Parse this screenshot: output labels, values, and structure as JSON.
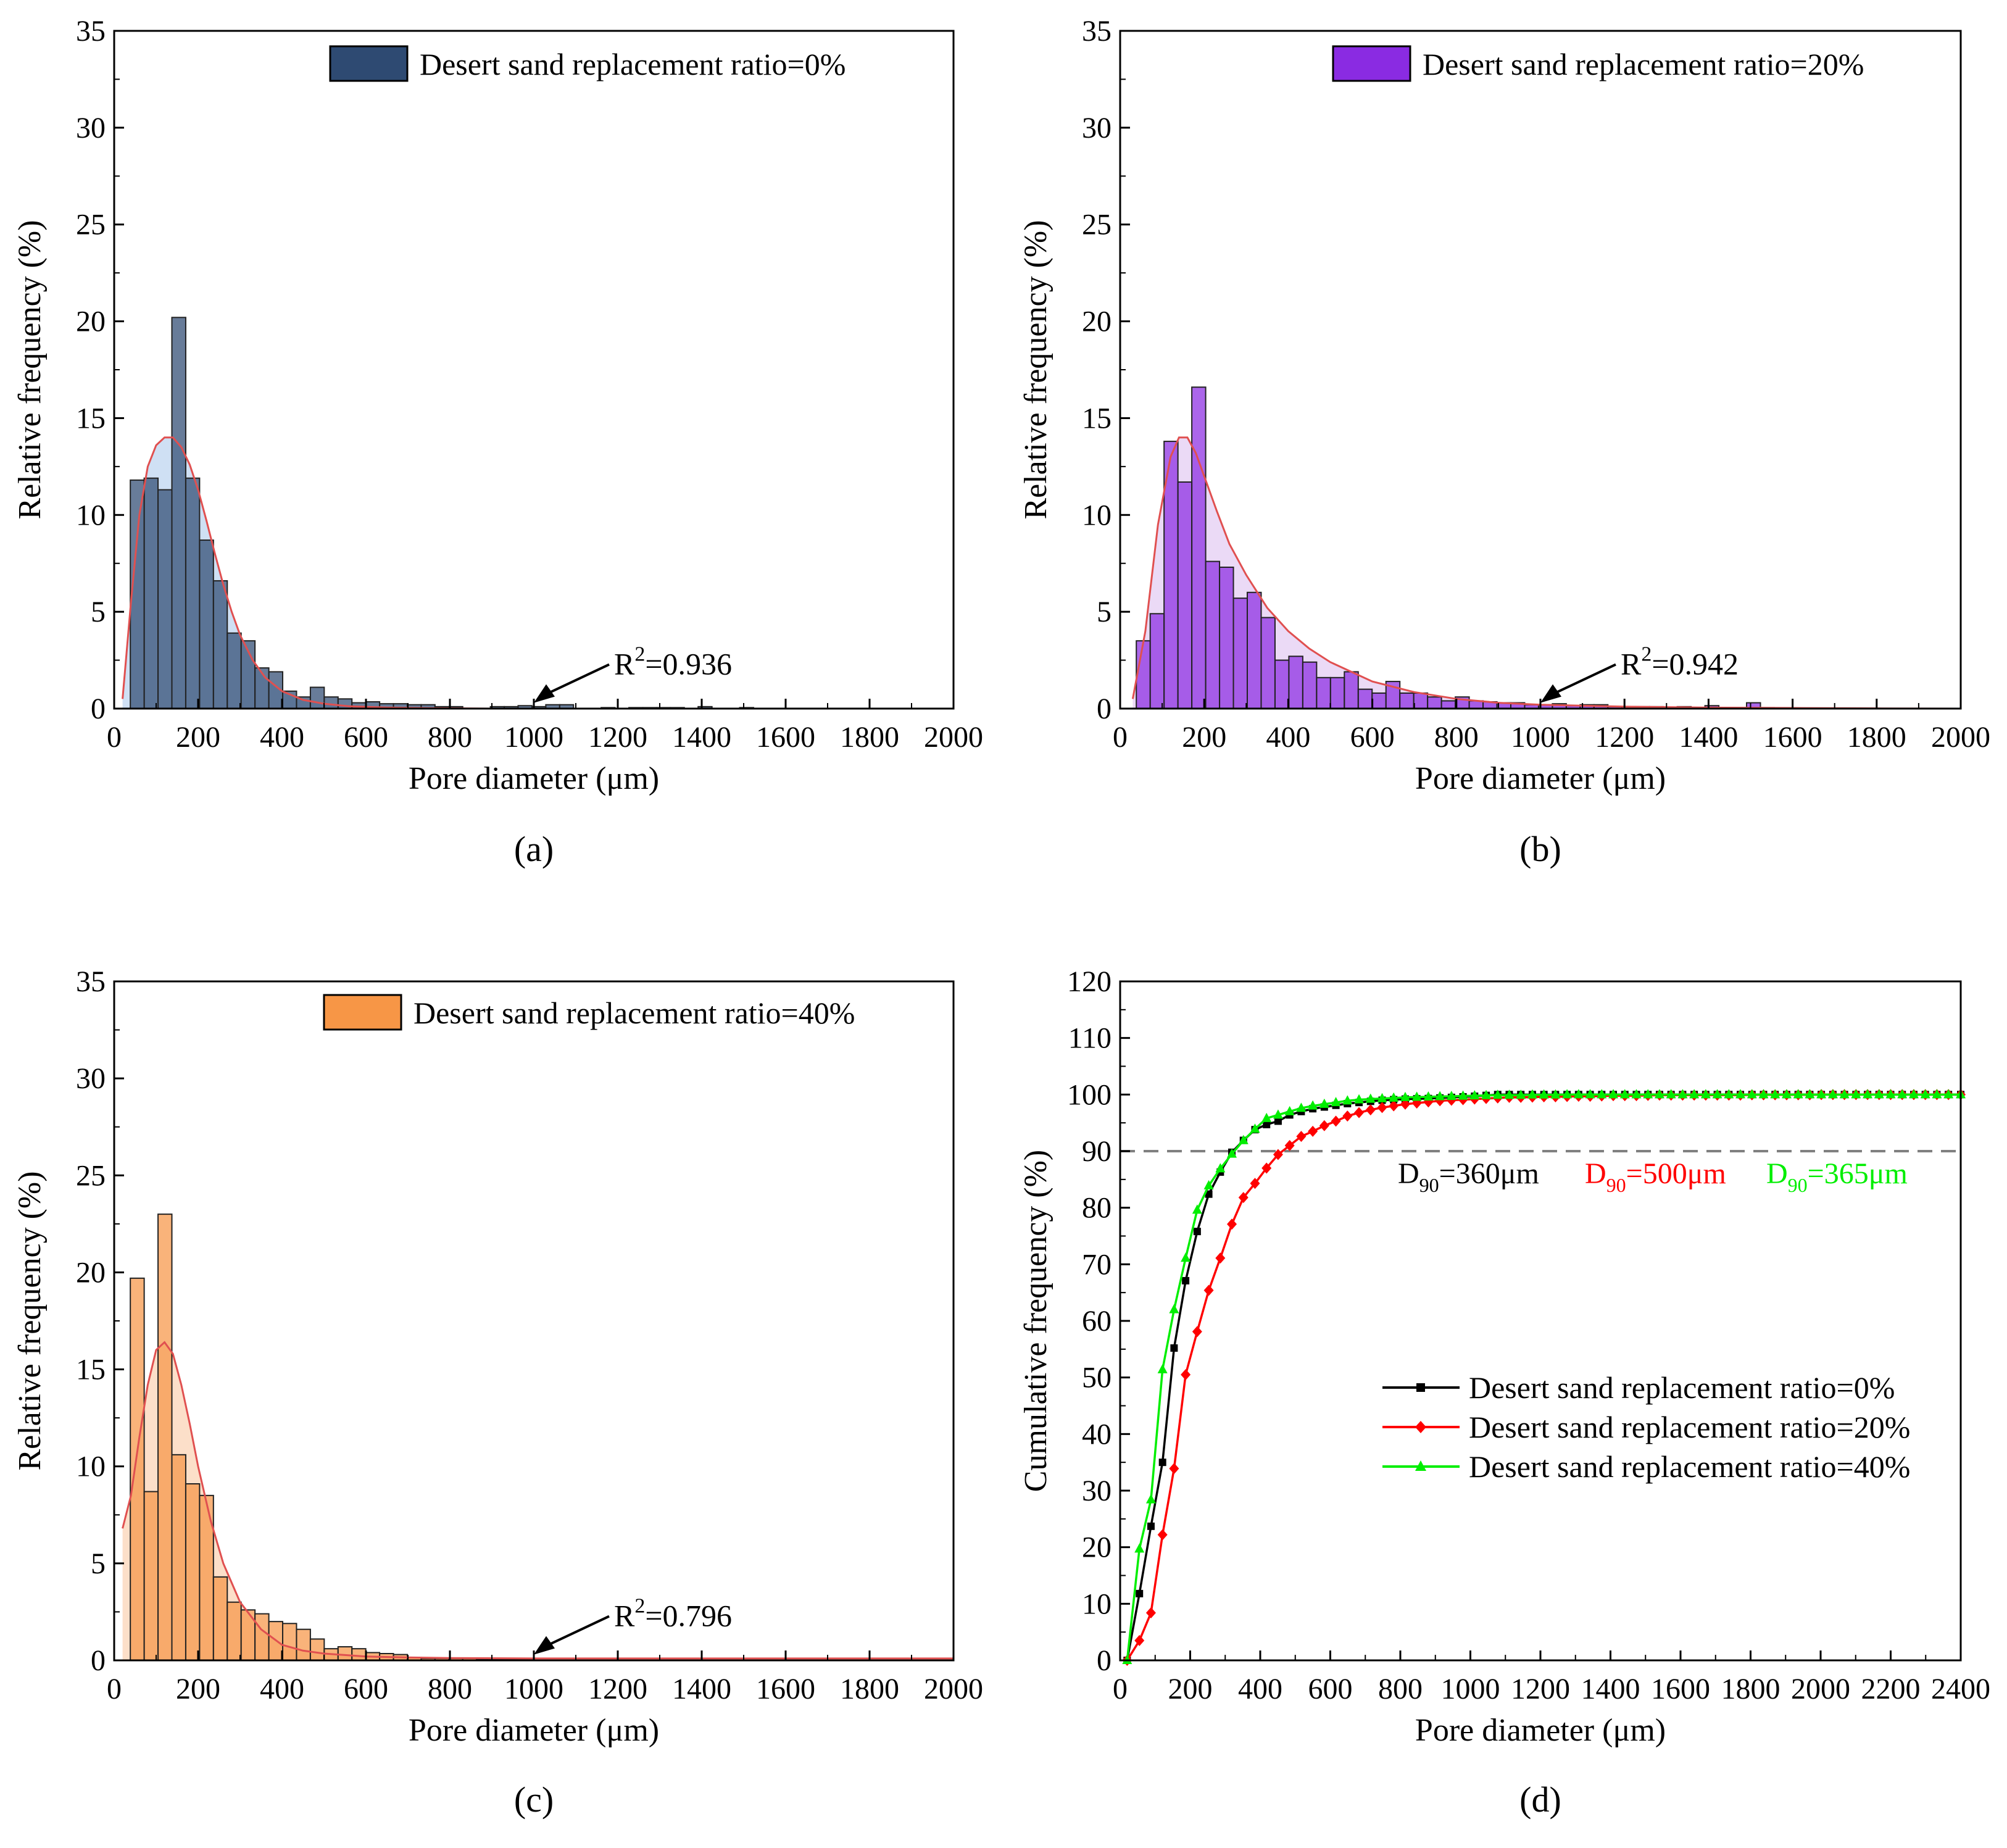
{
  "colors": {
    "a_bar": "#2e4a72",
    "a_fill": "#c7daf2",
    "b_bar": "#8a2be2",
    "b_fill": "#e8d3f4",
    "c_bar": "#f79646",
    "c_fill": "#fbd9c0",
    "fit_line": "#e05050",
    "series0": "#000000",
    "series20": "#ff0000",
    "series40": "#00ee00",
    "dashed": "#808080"
  },
  "chart_data": [
    {
      "type": "bar",
      "panel_label": "(a)",
      "legend": "Desert sand replacement ratio=0%",
      "xlabel": "Pore diameter (μm)",
      "ylabel": "Relative frequency (%)",
      "xlim": [
        0,
        2000
      ],
      "ylim": [
        0,
        35
      ],
      "xticks": [
        "0",
        "200",
        "400",
        "600",
        "800",
        "1000",
        "1200",
        "1400",
        "1600",
        "1800",
        "2000"
      ],
      "yticks": [
        "0",
        "5",
        "10",
        "15",
        "20",
        "25",
        "30",
        "35"
      ],
      "bin_width": 33,
      "x": [
        55,
        88,
        121,
        154,
        187,
        220,
        253,
        286,
        319,
        352,
        385,
        418,
        451,
        484,
        517,
        550,
        583,
        616,
        649,
        682,
        715,
        748,
        781,
        814,
        913,
        946,
        979,
        1012,
        1045,
        1078,
        1177,
        1243,
        1276,
        1309,
        1342,
        1408,
        1507
      ],
      "values": [
        11.8,
        11.9,
        11.3,
        20.2,
        11.9,
        8.7,
        6.6,
        3.9,
        3.5,
        2.1,
        1.9,
        0.9,
        0.6,
        1.1,
        0.6,
        0.5,
        0.3,
        0.35,
        0.25,
        0.25,
        0.2,
        0.2,
        0.1,
        0.1,
        0.1,
        0.1,
        0.15,
        0.1,
        0.2,
        0.2,
        0.05,
        0.05,
        0.05,
        0.05,
        0.05,
        0.1,
        0.05
      ],
      "fit_curve": {
        "x": [
          20,
          40,
          60,
          80,
          100,
          120,
          140,
          160,
          180,
          200,
          220,
          240,
          260,
          280,
          300,
          330,
          360,
          400,
          450,
          500,
          560,
          650,
          750,
          900,
          1100,
          1400,
          1700,
          2000
        ],
        "y": [
          0.5,
          5.5,
          10.0,
          12.5,
          13.6,
          14.0,
          14.0,
          13.5,
          12.6,
          11.3,
          9.7,
          8.0,
          6.4,
          5.0,
          3.8,
          2.5,
          1.6,
          0.9,
          0.45,
          0.25,
          0.12,
          0.05,
          0.02,
          0.0,
          0.0,
          0.0,
          0.0,
          0.0
        ]
      },
      "annotation": {
        "prefix": "R",
        "sup": "2",
        "suffix": "=0.936",
        "arrow_x": 1000,
        "arrow_y": 0.3
      }
    },
    {
      "type": "bar",
      "panel_label": "(b)",
      "legend": "Desert sand replacement ratio=20%",
      "xlabel": "Pore diameter (μm)",
      "ylabel": "Relative frequency (%)",
      "xlim": [
        0,
        2000
      ],
      "ylim": [
        0,
        35
      ],
      "xticks": [
        "0",
        "200",
        "400",
        "600",
        "800",
        "1000",
        "1200",
        "1400",
        "1600",
        "1800",
        "2000"
      ],
      "yticks": [
        "0",
        "5",
        "10",
        "15",
        "20",
        "25",
        "30",
        "35"
      ],
      "bin_width": 33,
      "x": [
        55,
        88,
        121,
        154,
        187,
        220,
        253,
        286,
        319,
        352,
        385,
        418,
        451,
        484,
        517,
        550,
        583,
        616,
        649,
        682,
        715,
        748,
        781,
        814,
        847,
        880,
        913,
        946,
        979,
        1012,
        1045,
        1078,
        1111,
        1144,
        1177,
        1210,
        1243,
        1276,
        1309,
        1342,
        1375,
        1408,
        1441,
        1474,
        1507,
        1540
      ],
      "values": [
        3.5,
        4.9,
        13.8,
        11.7,
        16.6,
        7.6,
        7.3,
        5.7,
        6.0,
        4.7,
        2.5,
        2.7,
        2.4,
        1.6,
        1.6,
        1.9,
        1.0,
        0.8,
        1.4,
        0.8,
        0.8,
        0.6,
        0.4,
        0.6,
        0.4,
        0.35,
        0.3,
        0.3,
        0.2,
        0.2,
        0.25,
        0.15,
        0.2,
        0.2,
        0.1,
        0.1,
        0.1,
        0.1,
        0.05,
        0.1,
        0.05,
        0.15,
        0.05,
        0.05,
        0.3,
        0.05
      ],
      "fit_curve": {
        "x": [
          30,
          60,
          90,
          120,
          140,
          160,
          180,
          200,
          230,
          260,
          300,
          350,
          400,
          450,
          500,
          600,
          700,
          800,
          900,
          1000,
          1200,
          1400,
          1600,
          1800,
          2000
        ],
        "y": [
          0.5,
          4.0,
          9.5,
          13.0,
          14.0,
          14.0,
          13.2,
          12.0,
          10.2,
          8.5,
          6.9,
          5.2,
          4.0,
          3.1,
          2.4,
          1.4,
          0.85,
          0.5,
          0.3,
          0.2,
          0.1,
          0.05,
          0.03,
          0.01,
          0.0
        ]
      },
      "annotation": {
        "prefix": "R",
        "sup": "2",
        "suffix": "=0.942",
        "arrow_x": 1000,
        "arrow_y": 0.3
      }
    },
    {
      "type": "bar",
      "panel_label": "(c)",
      "legend": "Desert sand replacement ratio=40%",
      "xlabel": "Pore diameter (μm)",
      "ylabel": "Relative frequency (%)",
      "xlim": [
        0,
        2000
      ],
      "ylim": [
        0,
        35
      ],
      "xticks": [
        "0",
        "200",
        "400",
        "600",
        "800",
        "1000",
        "1200",
        "1400",
        "1600",
        "1800",
        "2000"
      ],
      "yticks": [
        "0",
        "5",
        "10",
        "15",
        "20",
        "25",
        "30",
        "35"
      ],
      "bin_width": 33,
      "x": [
        55,
        88,
        121,
        154,
        187,
        220,
        253,
        286,
        319,
        352,
        385,
        418,
        451,
        484,
        517,
        550,
        583,
        616,
        649,
        682,
        715,
        748,
        781,
        814,
        847,
        880,
        913,
        946,
        979
      ],
      "values": [
        19.7,
        8.7,
        23.0,
        10.6,
        9.1,
        8.5,
        4.3,
        3.0,
        2.6,
        2.4,
        2.0,
        1.9,
        1.6,
        1.1,
        0.6,
        0.7,
        0.6,
        0.4,
        0.35,
        0.3,
        0.15,
        0.1,
        0.1,
        0.1,
        0.1,
        0.05,
        0.05,
        0.05,
        0.05
      ],
      "fit_curve": {
        "x": [
          20,
          40,
          60,
          80,
          100,
          120,
          140,
          160,
          180,
          200,
          230,
          260,
          300,
          350,
          400,
          450,
          500,
          600,
          700,
          800,
          1000,
          1200,
          1500,
          2000
        ],
        "y": [
          6.8,
          8.5,
          11.5,
          14.2,
          16.0,
          16.4,
          15.8,
          14.2,
          12.2,
          10.0,
          7.2,
          5.0,
          3.0,
          1.6,
          0.8,
          0.5,
          0.35,
          0.2,
          0.15,
          0.12,
          0.1,
          0.1,
          0.1,
          0.1
        ]
      },
      "annotation": {
        "prefix": "R",
        "sup": "2",
        "suffix": "=0.796",
        "arrow_x": 1000,
        "arrow_y": 0.3
      }
    },
    {
      "type": "line",
      "panel_label": "(d)",
      "xlabel": "Pore diameter (μm)",
      "ylabel": "Cumulative frequency (%)",
      "xlim": [
        0,
        2400
      ],
      "ylim": [
        0,
        120
      ],
      "xticks": [
        "0",
        "200",
        "400",
        "600",
        "800",
        "1000",
        "1200",
        "1400",
        "1600",
        "1800",
        "2000",
        "2200",
        "2400"
      ],
      "yticks": [
        "0",
        "10",
        "20",
        "30",
        "40",
        "50",
        "60",
        "70",
        "80",
        "90",
        "100",
        "110",
        "120"
      ],
      "reference_line": 90,
      "d90_labels": [
        {
          "prefix": "D",
          "sub": "90",
          "suffix": "=360μm",
          "color": "#000000"
        },
        {
          "prefix": "D",
          "sub": "90",
          "suffix": "=500μm",
          "color": "#ff0000"
        },
        {
          "prefix": "D",
          "sub": "90",
          "suffix": "=365μm",
          "color": "#00ee00"
        }
      ],
      "series": [
        {
          "name": "Desert sand replacement ratio=0%",
          "marker": "square",
          "x": [
            20,
            55,
            88,
            121,
            154,
            187,
            220,
            253,
            286,
            319,
            352,
            385,
            418,
            451,
            484,
            517,
            550,
            583,
            616,
            649,
            682,
            715,
            748,
            781,
            814,
            847,
            880,
            913,
            946,
            979,
            1012,
            1045,
            1078,
            1111,
            1144,
            1177,
            1210,
            1243,
            1276,
            1309,
            1342,
            1375,
            1408,
            1441,
            1474,
            1507,
            1540,
            1573,
            1606,
            1639,
            1672,
            1705,
            1738,
            1771,
            1804,
            1837,
            1870,
            1903,
            1936,
            1969,
            2002,
            2035,
            2068,
            2101,
            2134,
            2167,
            2200,
            2233,
            2266,
            2299,
            2332,
            2365,
            2400
          ],
          "values": [
            0,
            11.8,
            23.7,
            35.0,
            55.2,
            67.1,
            75.8,
            82.4,
            86.3,
            89.8,
            91.9,
            93.8,
            94.7,
            95.3,
            96.4,
            97.0,
            97.5,
            97.8,
            98.1,
            98.4,
            98.6,
            98.8,
            99.0,
            99.1,
            99.2,
            99.25,
            99.3,
            99.4,
            99.5,
            99.6,
            99.7,
            99.85,
            100,
            100,
            100,
            100,
            100,
            100,
            100,
            100,
            100,
            100,
            100,
            100,
            100,
            100,
            100,
            100,
            100,
            100,
            100,
            100,
            100,
            100,
            100,
            100,
            100,
            100,
            100,
            100,
            100,
            100,
            100,
            100,
            100,
            100,
            100,
            100,
            100,
            100,
            100,
            100,
            100
          ]
        },
        {
          "name": "Desert sand replacement ratio=20%",
          "marker": "diamond",
          "x": [
            20,
            55,
            88,
            121,
            154,
            187,
            220,
            253,
            286,
            319,
            352,
            385,
            418,
            451,
            484,
            517,
            550,
            583,
            616,
            649,
            682,
            715,
            748,
            781,
            814,
            847,
            880,
            913,
            946,
            979,
            1012,
            1045,
            1078,
            1111,
            1144,
            1177,
            1210,
            1243,
            1276,
            1309,
            1342,
            1375,
            1408,
            1441,
            1474,
            1507,
            1540,
            1573,
            1606,
            1639,
            1672,
            1705,
            1738,
            1771,
            1804,
            1837,
            1870,
            1903,
            1936,
            1969,
            2002,
            2035,
            2068,
            2101,
            2134,
            2167,
            2200,
            2233,
            2266,
            2299,
            2332,
            2365,
            2400
          ],
          "values": [
            0,
            3.5,
            8.4,
            22.2,
            33.9,
            50.5,
            58.1,
            65.4,
            71.1,
            77.1,
            81.8,
            84.3,
            87.0,
            89.4,
            91.0,
            92.6,
            93.5,
            94.5,
            95.3,
            96.2,
            96.8,
            97.3,
            97.7,
            98.0,
            98.3,
            98.5,
            98.7,
            98.9,
            99.0,
            99.1,
            99.2,
            99.3,
            99.4,
            99.5,
            99.5,
            99.55,
            99.6,
            99.6,
            99.65,
            99.7,
            99.7,
            99.75,
            99.8,
            99.8,
            99.8,
            99.85,
            99.9,
            99.9,
            99.9,
            99.9,
            99.9,
            99.9,
            99.9,
            99.9,
            99.95,
            99.95,
            99.95,
            99.95,
            99.95,
            99.95,
            100,
            100,
            100,
            100,
            100,
            100,
            100,
            100,
            100,
            100,
            100,
            100,
            100
          ]
        },
        {
          "name": "Desert sand replacement ratio=40%",
          "marker": "triangle",
          "x": [
            20,
            55,
            88,
            121,
            154,
            187,
            220,
            253,
            286,
            319,
            352,
            385,
            418,
            451,
            484,
            517,
            550,
            583,
            616,
            649,
            682,
            715,
            748,
            781,
            814,
            847,
            880,
            913,
            946,
            979,
            1012,
            1045,
            1078,
            1111,
            1144,
            1177,
            1210,
            1243,
            1276,
            1309,
            1342,
            1375,
            1408,
            1441,
            1474,
            1507,
            1540,
            1573,
            1606,
            1639,
            1672,
            1705,
            1738,
            1771,
            1804,
            1837,
            1870,
            1903,
            1936,
            1969,
            2002,
            2035,
            2068,
            2101,
            2134,
            2167,
            2200,
            2233,
            2266,
            2299,
            2332,
            2365,
            2400
          ],
          "values": [
            0,
            19.7,
            28.4,
            51.4,
            62.0,
            71.1,
            79.6,
            83.9,
            86.9,
            89.5,
            91.9,
            93.9,
            95.8,
            96.4,
            97.0,
            97.6,
            98.0,
            98.3,
            98.6,
            98.9,
            99.1,
            99.2,
            99.3,
            99.4,
            99.5,
            99.55,
            99.6,
            99.65,
            99.7,
            99.75,
            99.8,
            99.85,
            99.9,
            99.9,
            99.9,
            99.95,
            99.95,
            99.95,
            100,
            100,
            100,
            100,
            100,
            100,
            100,
            100,
            100,
            100,
            100,
            100,
            100,
            100,
            100,
            100,
            100,
            100,
            100,
            100,
            100,
            100,
            100,
            100,
            100,
            100,
            100,
            100,
            100,
            100,
            100,
            100,
            100,
            100,
            100
          ]
        }
      ]
    }
  ]
}
